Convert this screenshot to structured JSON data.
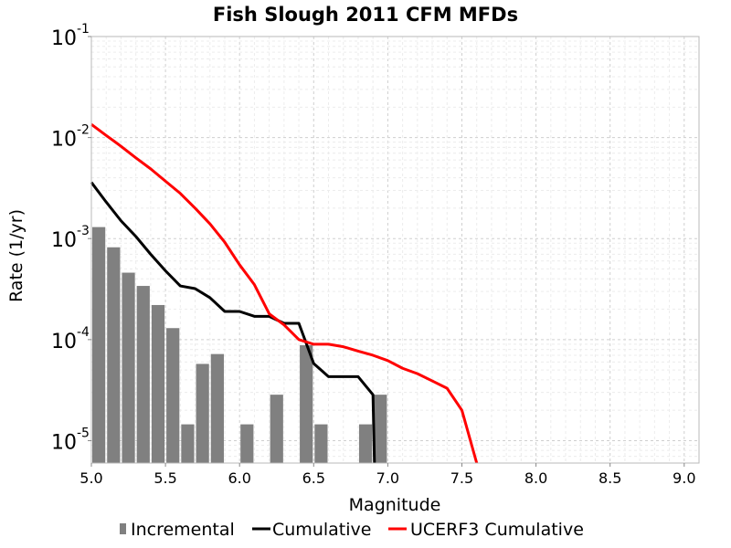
{
  "chart_data": {
    "type": "bar",
    "title": "Fish Slough 2011 CFM MFDs",
    "xlabel": "Magnitude",
    "ylabel": "Rate (1/yr)",
    "x_scale": "linear",
    "y_scale": "log",
    "xlim": [
      5.0,
      9.1
    ],
    "ylim": [
      6e-06,
      0.1
    ],
    "x_ticks": [
      5.0,
      5.5,
      6.0,
      6.5,
      7.0,
      7.5,
      8.0,
      8.5,
      9.0
    ],
    "x_tick_labels": [
      "5.0",
      "5.5",
      "6.0",
      "6.5",
      "7.0",
      "7.5",
      "8.0",
      "8.5",
      "9.0"
    ],
    "y_ticks": [
      {
        "value": 0.1,
        "base": "10",
        "exp": "-1"
      },
      {
        "value": 0.01,
        "base": "10",
        "exp": "-2"
      },
      {
        "value": 0.001,
        "base": "10",
        "exp": "-3"
      },
      {
        "value": 0.0001,
        "base": "10",
        "exp": "-4"
      },
      {
        "value": 1e-05,
        "base": "10",
        "exp": "-5"
      }
    ],
    "grid": true,
    "legend_position": "bottom",
    "series": [
      {
        "name": "Incremental",
        "type": "bar",
        "color": "#808080",
        "bin_width": 0.1,
        "x": [
          5.05,
          5.15,
          5.25,
          5.35,
          5.45,
          5.55,
          5.65,
          5.75,
          5.85,
          6.05,
          6.25,
          6.45,
          6.55,
          6.85,
          6.95
        ],
        "y": [
          0.0013,
          0.00082,
          0.00046,
          0.00034,
          0.00022,
          0.00013,
          1.45e-05,
          5.75e-05,
          7.2e-05,
          1.45e-05,
          2.85e-05,
          8.8e-05,
          1.45e-05,
          1.45e-05,
          2.85e-05
        ]
      },
      {
        "name": "Cumulative",
        "type": "line",
        "color": "#000000",
        "x": [
          5.0,
          5.1,
          5.2,
          5.3,
          5.4,
          5.5,
          5.6,
          5.7,
          5.8,
          5.9,
          6.0,
          6.1,
          6.2,
          6.3,
          6.4,
          6.5,
          6.6,
          6.7,
          6.8,
          6.9,
          6.91
        ],
        "y": [
          0.0036,
          0.0023,
          0.0015,
          0.00105,
          0.0007,
          0.00048,
          0.00034,
          0.00032,
          0.00026,
          0.00019,
          0.00019,
          0.00017,
          0.00017,
          0.000145,
          0.000145,
          5.8e-05,
          4.3e-05,
          4.3e-05,
          4.3e-05,
          2.85e-05,
          6e-06
        ]
      },
      {
        "name": "UCERF3 Cumulative",
        "type": "line",
        "color": "#ff0000",
        "x": [
          5.0,
          5.1,
          5.2,
          5.3,
          5.4,
          5.5,
          5.6,
          5.7,
          5.8,
          5.9,
          6.0,
          6.1,
          6.2,
          6.3,
          6.4,
          6.5,
          6.6,
          6.7,
          6.8,
          6.9,
          7.0,
          7.1,
          7.2,
          7.3,
          7.4,
          7.5,
          7.6
        ],
        "y": [
          0.0135,
          0.0105,
          0.0082,
          0.0063,
          0.0049,
          0.0037,
          0.0028,
          0.002,
          0.0014,
          0.00092,
          0.00055,
          0.00035,
          0.00018,
          0.00014,
          0.0001,
          9e-05,
          9e-05,
          8.5e-05,
          7.7e-05,
          7e-05,
          6.2e-05,
          5.2e-05,
          4.6e-05,
          3.9e-05,
          3.3e-05,
          2e-05,
          6e-06
        ]
      }
    ]
  }
}
